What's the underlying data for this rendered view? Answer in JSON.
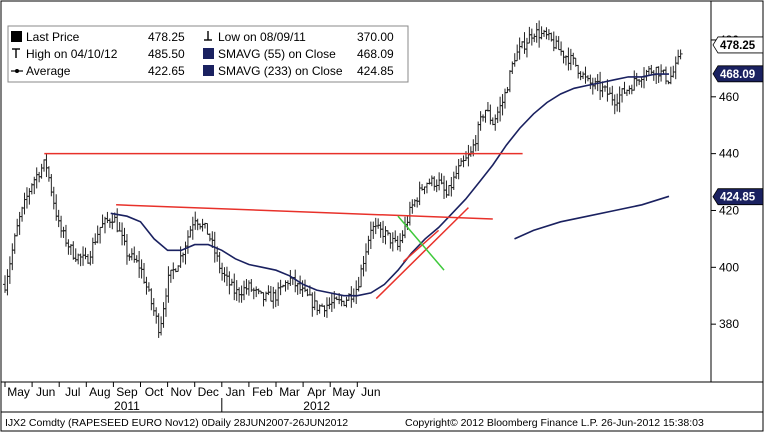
{
  "chart_data": {
    "type": "bar",
    "subtype": "ohlc-price-chart",
    "title": "",
    "xlabel": "",
    "ylabel": "",
    "ylim": [
      360,
      490
    ],
    "y_ticks": [
      380,
      400,
      420,
      440,
      460,
      480
    ],
    "x_months": [
      "May",
      "Jun",
      "Jul",
      "Aug",
      "Sep",
      "Oct",
      "Nov",
      "Dec",
      "Jan",
      "Feb",
      "Mar",
      "Apr",
      "May",
      "Jun"
    ],
    "x_years": [
      "2011",
      "2012"
    ],
    "grid": false,
    "legend_placement": "top-left",
    "legend": [
      {
        "label": "Last Price",
        "value": "478.25"
      },
      {
        "label": "High on 04/10/12",
        "value": "485.50"
      },
      {
        "label": "Average",
        "value": "422.65"
      },
      {
        "label": "Low on 08/09/11",
        "value": "370.00"
      },
      {
        "label": "SMAVG (55) on Close",
        "value": "468.09"
      },
      {
        "label": "SMAVG (233) on Close",
        "value": "424.85"
      }
    ],
    "price_tags": [
      {
        "value": "478.25",
        "bg": "#ffffff",
        "fg": "#000000"
      },
      {
        "value": "468.09",
        "bg": "#1a2160",
        "fg": "#ffffff"
      },
      {
        "value": "424.85",
        "bg": "#1a2160",
        "fg": "#ffffff"
      }
    ],
    "price_series": {
      "name": "Last Price",
      "anchors": [
        [
          0,
          394
        ],
        [
          0.5,
          416
        ],
        [
          1.0,
          430
        ],
        [
          1.5,
          437
        ],
        [
          2.0,
          414
        ],
        [
          2.5,
          405
        ],
        [
          3.0,
          402
        ],
        [
          3.5,
          414
        ],
        [
          4.0,
          418
        ],
        [
          4.5,
          405
        ],
        [
          5.0,
          400
        ],
        [
          5.7,
          378
        ],
        [
          6.0,
          395
        ],
        [
          6.5,
          404
        ],
        [
          7.0,
          418
        ],
        [
          7.5,
          412
        ],
        [
          8.0,
          398
        ],
        [
          8.5,
          391
        ],
        [
          9.0,
          393
        ],
        [
          9.5,
          389
        ],
        [
          10.0,
          390
        ],
        [
          10.5,
          396
        ],
        [
          11.0,
          391
        ],
        [
          11.5,
          386
        ],
        [
          12.0,
          387
        ],
        [
          12.5,
          388
        ],
        [
          13.0,
          393
        ],
        [
          13.5,
          414
        ],
        [
          14.0,
          412
        ],
        [
          14.5,
          407
        ],
        [
          15.0,
          421
        ],
        [
          15.5,
          430
        ],
        [
          16.0,
          430
        ],
        [
          16.3,
          425
        ],
        [
          16.7,
          434
        ],
        [
          17.2,
          440
        ],
        [
          17.7,
          456
        ],
        [
          18.0,
          451
        ],
        [
          18.4,
          459
        ],
        [
          18.8,
          474
        ],
        [
          19.2,
          479
        ],
        [
          19.5,
          483
        ],
        [
          20.0,
          481
        ],
        [
          20.5,
          476
        ],
        [
          21.0,
          472
        ],
        [
          21.5,
          465
        ],
        [
          22.0,
          463
        ],
        [
          22.5,
          459
        ],
        [
          23.0,
          463
        ],
        [
          23.5,
          468
        ],
        [
          24.0,
          470
        ],
        [
          24.5,
          466
        ],
        [
          24.8,
          471
        ],
        [
          25.0,
          478
        ]
      ]
    },
    "sma55": {
      "name": "SMAVG (55) on Close",
      "color": "#1a2160",
      "points": [
        [
          3.9,
          419
        ],
        [
          4.5,
          418
        ],
        [
          5.0,
          416
        ],
        [
          5.5,
          410
        ],
        [
          6.0,
          406
        ],
        [
          6.5,
          406
        ],
        [
          7.0,
          408
        ],
        [
          7.5,
          408
        ],
        [
          8.0,
          406
        ],
        [
          8.5,
          403
        ],
        [
          9.0,
          401
        ],
        [
          9.5,
          400
        ],
        [
          10.0,
          399
        ],
        [
          10.5,
          397
        ],
        [
          11.0,
          394
        ],
        [
          11.5,
          392
        ],
        [
          12.0,
          391
        ],
        [
          12.5,
          390
        ],
        [
          13.0,
          390
        ],
        [
          13.5,
          391
        ],
        [
          14.0,
          394
        ],
        [
          14.5,
          399
        ],
        [
          15.0,
          405
        ],
        [
          15.5,
          410
        ],
        [
          16.0,
          414
        ],
        [
          16.5,
          419
        ],
        [
          17.0,
          424
        ],
        [
          17.5,
          430
        ],
        [
          18.0,
          436
        ],
        [
          18.5,
          443
        ],
        [
          19.0,
          449
        ],
        [
          19.5,
          454
        ],
        [
          20.0,
          458
        ],
        [
          20.5,
          461
        ],
        [
          21.0,
          463
        ],
        [
          21.5,
          464
        ],
        [
          22.0,
          465
        ],
        [
          22.5,
          466
        ],
        [
          23.0,
          467
        ],
        [
          23.5,
          467
        ],
        [
          24.0,
          468
        ],
        [
          24.5,
          468
        ]
      ]
    },
    "sma233": {
      "name": "SMAVG (233) on Close",
      "color": "#1a2160",
      "points": [
        [
          18.8,
          410
        ],
        [
          19.5,
          413
        ],
        [
          20.5,
          416
        ],
        [
          21.5,
          418
        ],
        [
          22.5,
          420
        ],
        [
          23.5,
          422
        ],
        [
          24.5,
          425
        ]
      ]
    },
    "trend_lines": [
      {
        "color": "#e8312a",
        "from": [
          1.45,
          440
        ],
        "to": [
          19.1,
          440
        ]
      },
      {
        "color": "#e8312a",
        "from": [
          4.1,
          422
        ],
        "to": [
          18.0,
          417
        ]
      },
      {
        "color": "#e8312a",
        "from": [
          13.7,
          389
        ],
        "to": [
          17.1,
          421
        ]
      },
      {
        "color": "#e8312a",
        "from": [
          14.7,
          402
        ],
        "to": [
          16.0,
          413
        ]
      },
      {
        "color": "#3ec93b",
        "from": [
          14.5,
          418
        ],
        "to": [
          16.2,
          399
        ]
      }
    ]
  },
  "footer": {
    "left": "IJX2 Comdty (RAPESEED  EURO   Nov12) 0Daily 28JUN2007-26JUN2012",
    "right": "Copyright© 2012 Bloomberg Finance L.P.      26-Jun-2012 15:38:03"
  }
}
